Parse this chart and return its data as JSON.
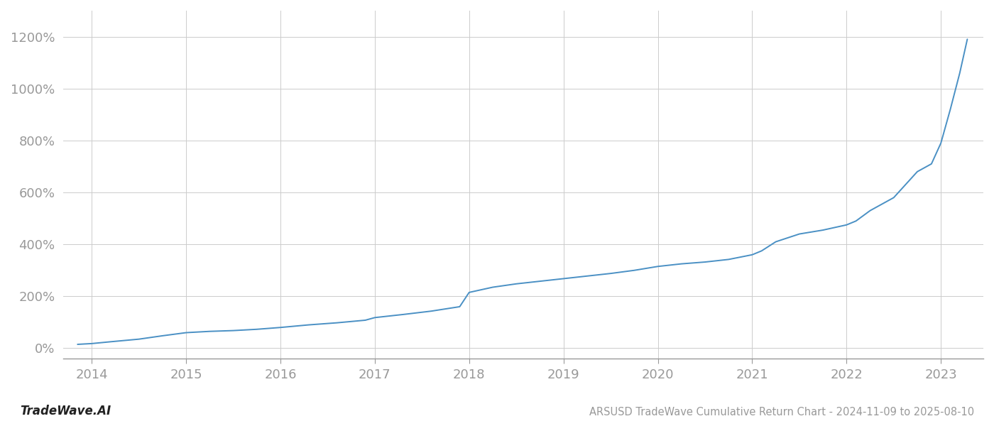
{
  "title": "ARSUSD TradeWave Cumulative Return Chart - 2024-11-09 to 2025-08-10",
  "watermark": "TradeWave.AI",
  "line_color": "#4a90c4",
  "background_color": "#ffffff",
  "grid_color": "#cccccc",
  "axis_color": "#999999",
  "tick_label_color": "#999999",
  "x_ticks": [
    2014,
    2015,
    2016,
    2017,
    2018,
    2019,
    2020,
    2021,
    2022,
    2023
  ],
  "y_ticks": [
    0,
    200,
    400,
    600,
    800,
    1000,
    1200
  ],
  "xlim": [
    2013.7,
    2023.45
  ],
  "ylim": [
    -40,
    1300
  ],
  "data_x": [
    2013.85,
    2014.0,
    2014.2,
    2014.5,
    2014.75,
    2015.0,
    2015.25,
    2015.5,
    2015.75,
    2016.0,
    2016.3,
    2016.6,
    2016.9,
    2017.0,
    2017.3,
    2017.6,
    2017.9,
    2018.0,
    2018.25,
    2018.5,
    2018.75,
    2019.0,
    2019.25,
    2019.5,
    2019.75,
    2020.0,
    2020.25,
    2020.5,
    2020.75,
    2021.0,
    2021.1,
    2021.25,
    2021.5,
    2021.75,
    2022.0,
    2022.1,
    2022.25,
    2022.5,
    2022.6,
    2022.75,
    2022.85,
    2022.9,
    2023.0,
    2023.1,
    2023.2,
    2023.28
  ],
  "data_y": [
    15,
    18,
    25,
    35,
    48,
    60,
    65,
    68,
    73,
    80,
    90,
    98,
    108,
    118,
    130,
    143,
    160,
    215,
    235,
    248,
    258,
    268,
    278,
    288,
    300,
    315,
    325,
    332,
    342,
    360,
    375,
    410,
    440,
    455,
    475,
    490,
    530,
    580,
    620,
    680,
    700,
    710,
    790,
    920,
    1060,
    1190
  ]
}
